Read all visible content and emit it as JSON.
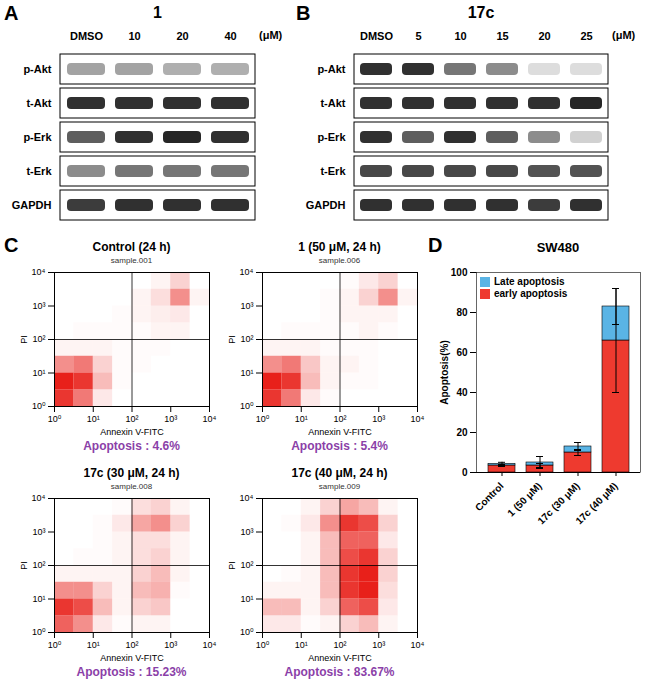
{
  "chart_data": [
    {
      "panel": "A",
      "type": "heatmap",
      "title": "1",
      "xlabel": "(μM)",
      "categories": [
        "DMSO",
        "10",
        "20",
        "40"
      ],
      "rows": [
        "p-Akt",
        "t-Akt",
        "p-Erk",
        "t-Erk",
        "GAPDH"
      ],
      "cells": [
        [
          0.4,
          0.4,
          0.35,
          0.35
        ],
        [
          0.9,
          0.9,
          0.9,
          0.9
        ],
        [
          0.7,
          0.9,
          0.95,
          0.9
        ],
        [
          0.5,
          0.6,
          0.6,
          0.6
        ],
        [
          0.85,
          0.9,
          0.9,
          0.9
        ]
      ]
    },
    {
      "panel": "B",
      "type": "heatmap",
      "title": "17c",
      "xlabel": "(μM)",
      "categories": [
        "DMSO",
        "5",
        "10",
        "15",
        "20",
        "25"
      ],
      "rows": [
        "p-Akt",
        "t-Akt",
        "p-Erk",
        "t-Erk",
        "GAPDH"
      ],
      "cells": [
        [
          0.9,
          0.9,
          0.6,
          0.5,
          0.15,
          0.15
        ],
        [
          0.9,
          0.9,
          0.9,
          0.9,
          0.9,
          0.95
        ],
        [
          0.9,
          0.7,
          0.9,
          0.7,
          0.5,
          0.2
        ],
        [
          0.8,
          0.8,
          0.8,
          0.8,
          0.75,
          0.75
        ],
        [
          0.9,
          0.9,
          0.9,
          0.9,
          0.85,
          0.9
        ]
      ]
    },
    {
      "panel": "C",
      "type": "heatmap",
      "title": "Control (24 h)",
      "subtitle": "sample.001",
      "caption": "Apoptosis : 4.6%",
      "xlabel": "Annexin V-FITC",
      "ylabel": "PI",
      "log": true,
      "color": "#e8201a",
      "xlim": [
        1,
        10000
      ],
      "ylim": [
        1,
        10000
      ],
      "xticks": [
        {
          "value": 1,
          "label": "10⁰"
        },
        {
          "value": 10,
          "label": "10¹"
        },
        {
          "value": 100,
          "label": "10²"
        },
        {
          "value": 1000,
          "label": "10³"
        },
        {
          "value": 10000,
          "label": "10⁴"
        }
      ],
      "yticks": [
        {
          "value": 1,
          "label": "10⁰"
        },
        {
          "value": 10,
          "label": "10¹"
        },
        {
          "value": 100,
          "label": "10²"
        },
        {
          "value": 1000,
          "label": "10³"
        },
        {
          "value": 10000,
          "label": "10⁴"
        }
      ],
      "gates": {
        "x": 100,
        "y": 100
      },
      "x_bins": [
        1,
        3.16,
        10,
        31.6,
        100,
        316,
        1000,
        3162,
        10000
      ],
      "y_bins": [
        1,
        3.16,
        10,
        31.6,
        100,
        316,
        1000,
        3162,
        10000
      ],
      "cells": [
        [
          0.9,
          0.6,
          0.1,
          0,
          0,
          0,
          0,
          0
        ],
        [
          1.0,
          0.9,
          0.3,
          0.02,
          0,
          0,
          0,
          0
        ],
        [
          0.5,
          0.6,
          0.2,
          0.02,
          0.02,
          0,
          0,
          0
        ],
        [
          0.05,
          0.05,
          0.05,
          0.02,
          0.02,
          0.02,
          0,
          0
        ],
        [
          0,
          0.02,
          0.02,
          0.02,
          0.02,
          0.05,
          0.05,
          0
        ],
        [
          0,
          0,
          0,
          0.02,
          0.05,
          0.08,
          0.1,
          0
        ],
        [
          0,
          0,
          0,
          0,
          0.05,
          0.15,
          0.5,
          0.05
        ],
        [
          0,
          0,
          0,
          0,
          0,
          0.05,
          0.2,
          0
        ]
      ]
    },
    {
      "type": "heatmap",
      "title": "1 (50 μM, 24 h)",
      "subtitle": "sample.006",
      "caption": "Apoptosis : 5.4%",
      "xlabel": "Annexin V-FITC",
      "ylabel": "PI",
      "log": true,
      "color": "#e8201a",
      "xlim": [
        1,
        10000
      ],
      "ylim": [
        1,
        10000
      ],
      "xticks": [
        {
          "value": 1,
          "label": "10⁰"
        },
        {
          "value": 10,
          "label": "10¹"
        },
        {
          "value": 100,
          "label": "10²"
        },
        {
          "value": 1000,
          "label": "10³"
        },
        {
          "value": 10000,
          "label": "10⁴"
        }
      ],
      "yticks": [
        {
          "value": 1,
          "label": "10⁰"
        },
        {
          "value": 10,
          "label": "10¹"
        },
        {
          "value": 100,
          "label": "10²"
        },
        {
          "value": 1000,
          "label": "10³"
        },
        {
          "value": 10000,
          "label": "10⁴"
        }
      ],
      "gates": {
        "x": 100,
        "y": 100
      },
      "x_bins": [
        1,
        3.16,
        10,
        31.6,
        100,
        316,
        1000,
        3162,
        10000
      ],
      "y_bins": [
        1,
        3.16,
        10,
        31.6,
        100,
        316,
        1000,
        3162,
        10000
      ],
      "cells": [
        [
          0.9,
          0.6,
          0.1,
          0.02,
          0,
          0,
          0,
          0
        ],
        [
          1.0,
          0.9,
          0.3,
          0.05,
          0.02,
          0.02,
          0,
          0
        ],
        [
          0.5,
          0.6,
          0.25,
          0.05,
          0.05,
          0.02,
          0,
          0
        ],
        [
          0.05,
          0.05,
          0.05,
          0.02,
          0.02,
          0.02,
          0,
          0
        ],
        [
          0,
          0.02,
          0.02,
          0.02,
          0.02,
          0.05,
          0.02,
          0
        ],
        [
          0,
          0,
          0,
          0.02,
          0.05,
          0.05,
          0.05,
          0
        ],
        [
          0,
          0,
          0,
          0.02,
          0.05,
          0.2,
          0.5,
          0.05
        ],
        [
          0,
          0,
          0,
          0,
          0.02,
          0.1,
          0.2,
          0
        ]
      ]
    },
    {
      "type": "heatmap",
      "title": "17c (30 μM, 24 h)",
      "subtitle": "sample.008",
      "caption": "Apoptosis : 15.23%",
      "xlabel": "Annexin V-FITC",
      "ylabel": "PI",
      "log": true,
      "color": "#e8201a",
      "xlim": [
        1,
        10000
      ],
      "ylim": [
        1,
        10000
      ],
      "xticks": [
        {
          "value": 1,
          "label": "10⁰"
        },
        {
          "value": 10,
          "label": "10¹"
        },
        {
          "value": 100,
          "label": "10²"
        },
        {
          "value": 1000,
          "label": "10³"
        },
        {
          "value": 10000,
          "label": "10⁴"
        }
      ],
      "yticks": [
        {
          "value": 1,
          "label": "10⁰"
        },
        {
          "value": 10,
          "label": "10¹"
        },
        {
          "value": 100,
          "label": "10²"
        },
        {
          "value": 1000,
          "label": "10³"
        },
        {
          "value": 10000,
          "label": "10⁴"
        }
      ],
      "gates": {
        "x": 100,
        "y": 100
      },
      "x_bins": [
        1,
        3.16,
        10,
        31.6,
        100,
        316,
        1000,
        3162,
        10000
      ],
      "y_bins": [
        1,
        3.16,
        10,
        31.6,
        100,
        316,
        1000,
        3162,
        10000
      ],
      "cells": [
        [
          0.7,
          0.5,
          0.1,
          0.02,
          0.05,
          0.05,
          0,
          0
        ],
        [
          0.9,
          0.8,
          0.3,
          0.05,
          0.2,
          0.25,
          0,
          0
        ],
        [
          0.5,
          0.5,
          0.2,
          0.05,
          0.3,
          0.35,
          0.02,
          0
        ],
        [
          0.05,
          0.05,
          0.05,
          0.05,
          0.2,
          0.3,
          0.05,
          0
        ],
        [
          0,
          0.02,
          0.02,
          0.05,
          0.15,
          0.2,
          0.05,
          0
        ],
        [
          0,
          0,
          0.02,
          0.05,
          0.15,
          0.15,
          0.05,
          0
        ],
        [
          0,
          0,
          0.02,
          0.1,
          0.4,
          0.5,
          0.2,
          0
        ],
        [
          0,
          0,
          0,
          0.02,
          0.15,
          0.2,
          0.05,
          0
        ]
      ]
    },
    {
      "type": "heatmap",
      "title": "17c (40 μM, 24 h)",
      "subtitle": "sample.009",
      "caption": "Apoptosis : 83.67%",
      "xlabel": "Annexin V-FITC",
      "ylabel": "PI",
      "log": true,
      "color": "#e8201a",
      "xlim": [
        1,
        10000
      ],
      "ylim": [
        1,
        10000
      ],
      "xticks": [
        {
          "value": 1,
          "label": "10⁰"
        },
        {
          "value": 10,
          "label": "10¹"
        },
        {
          "value": 100,
          "label": "10²"
        },
        {
          "value": 1000,
          "label": "10³"
        },
        {
          "value": 10000,
          "label": "10⁴"
        }
      ],
      "yticks": [
        {
          "value": 1,
          "label": "10⁰"
        },
        {
          "value": 10,
          "label": "10¹"
        },
        {
          "value": 100,
          "label": "10²"
        },
        {
          "value": 1000,
          "label": "10³"
        },
        {
          "value": 10000,
          "label": "10⁴"
        }
      ],
      "gates": {
        "x": 100,
        "y": 100
      },
      "x_bins": [
        1,
        3.16,
        10,
        31.6,
        100,
        316,
        1000,
        3162,
        10000
      ],
      "y_bins": [
        1,
        3.16,
        10,
        31.6,
        100,
        316,
        1000,
        3162,
        10000
      ],
      "cells": [
        [
          0.1,
          0.1,
          0.02,
          0.05,
          0.2,
          0.3,
          0.05,
          0
        ],
        [
          0.3,
          0.3,
          0.05,
          0.2,
          0.7,
          0.8,
          0.1,
          0
        ],
        [
          0.05,
          0.05,
          0.05,
          0.3,
          0.9,
          1.0,
          0.15,
          0
        ],
        [
          0,
          0.02,
          0.05,
          0.3,
          0.9,
          1.0,
          0.2,
          0
        ],
        [
          0,
          0,
          0.05,
          0.3,
          0.8,
          0.9,
          0.2,
          0
        ],
        [
          0,
          0,
          0.05,
          0.3,
          0.7,
          0.7,
          0.1,
          0
        ],
        [
          0,
          0.02,
          0.1,
          0.5,
          0.9,
          0.8,
          0.2,
          0
        ],
        [
          0,
          0,
          0.05,
          0.2,
          0.4,
          0.3,
          0.05,
          0
        ]
      ]
    },
    {
      "panel": "D",
      "type": "bar",
      "title": "SW480",
      "ylabel": "Apoptosis(%)",
      "categories": [
        "Control",
        "1 (50 μM)",
        "17c (30 μM)",
        "17c (40 μM)"
      ],
      "ylim": [
        0,
        100
      ],
      "yticks": [
        0,
        20,
        40,
        60,
        80,
        100
      ],
      "stacked": true,
      "legend": "top-left",
      "series": [
        {
          "name": "early apoptosis",
          "color": "#ee3a2f",
          "values": [
            3.5,
            3.5,
            10,
            66
          ],
          "errors": [
            0.5,
            1,
            1.5,
            26
          ]
        },
        {
          "name": "Late apoptosis",
          "color": "#5ab4e5",
          "values": [
            0.8,
            1.5,
            3,
            17
          ],
          "errors": [
            0.8,
            3,
            2,
            9
          ]
        }
      ]
    }
  ]
}
